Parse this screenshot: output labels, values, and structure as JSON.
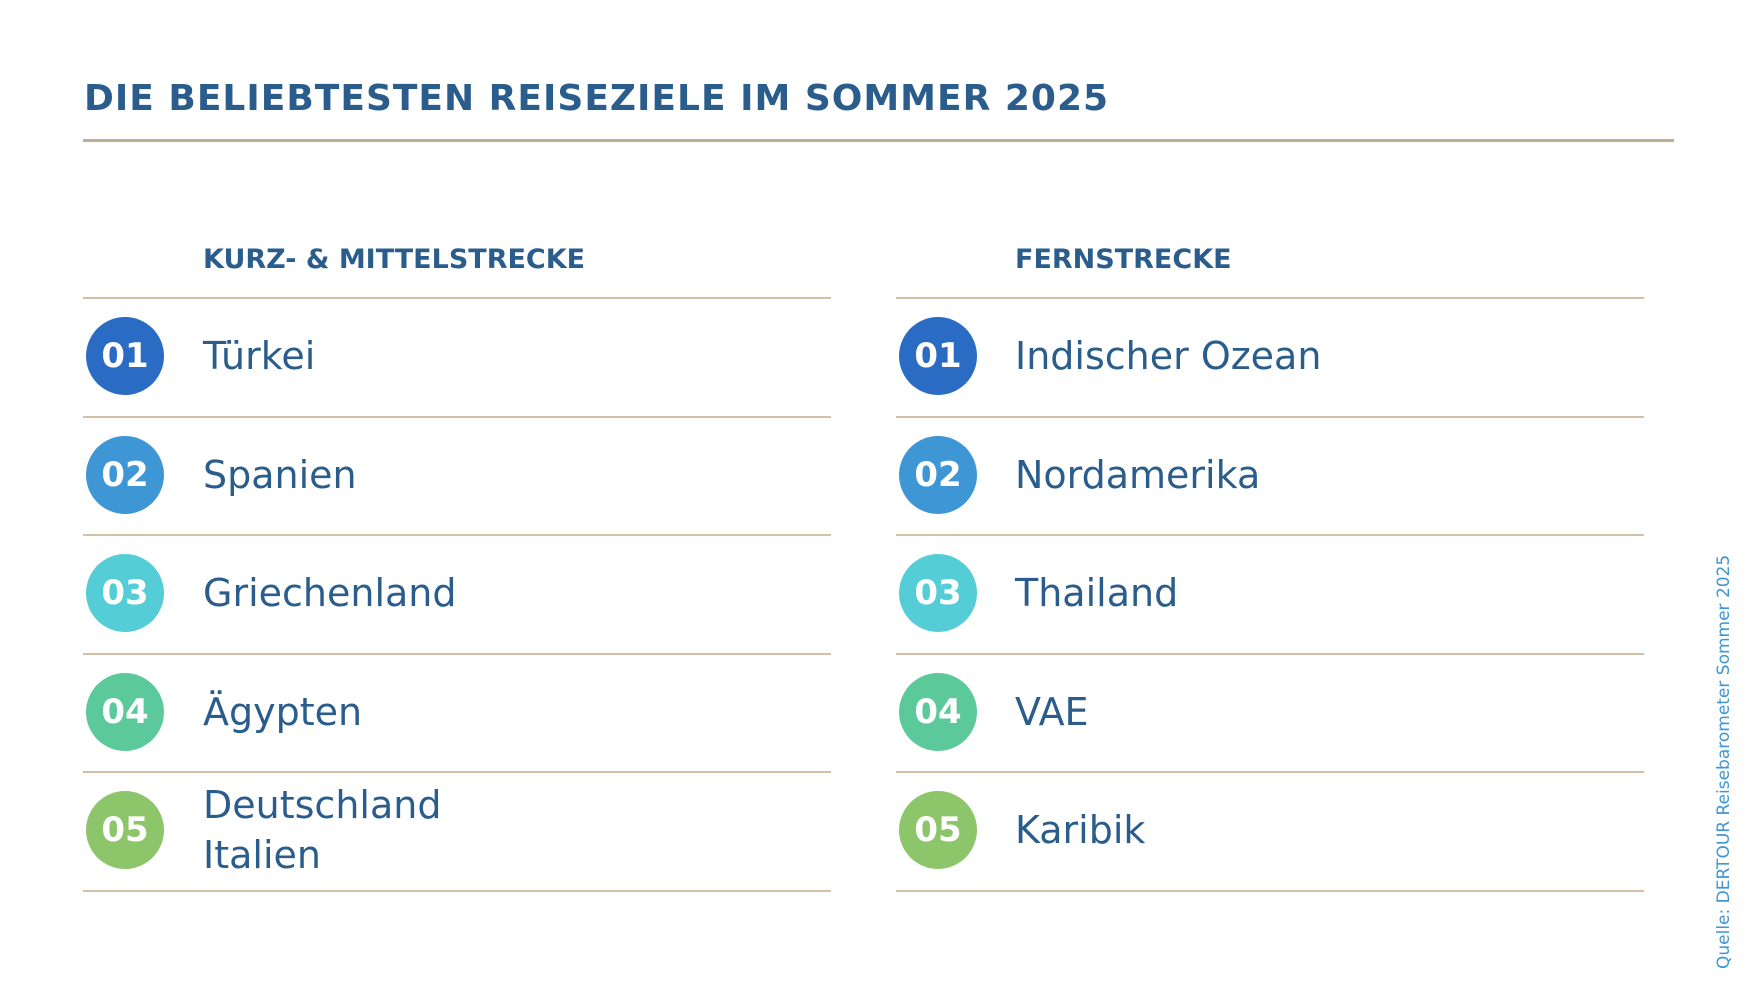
{
  "title": "DIE BELIEBTESTEN REISEZIELE IM SOMMER 2025",
  "columns": [
    {
      "header": "KURZ- & MITTELSTRECKE",
      "items": [
        {
          "rank": "01",
          "lines": [
            "Türkei"
          ]
        },
        {
          "rank": "02",
          "lines": [
            "Spanien"
          ]
        },
        {
          "rank": "03",
          "lines": [
            "Griechenland"
          ]
        },
        {
          "rank": "04",
          "lines": [
            "Ägypten"
          ]
        },
        {
          "rank": "05",
          "lines": [
            "Deutschland",
            "Italien"
          ]
        }
      ]
    },
    {
      "header": "FERNSTRECKE",
      "items": [
        {
          "rank": "01",
          "lines": [
            "Indischer Ozean"
          ]
        },
        {
          "rank": "02",
          "lines": [
            "Nordamerika"
          ]
        },
        {
          "rank": "03",
          "lines": [
            "Thailand"
          ]
        },
        {
          "rank": "04",
          "lines": [
            "VAE"
          ]
        },
        {
          "rank": "05",
          "lines": [
            "Karibik"
          ]
        }
      ]
    }
  ],
  "source": "Quelle: DERTOUR Reisebarometer Sommer 2025"
}
